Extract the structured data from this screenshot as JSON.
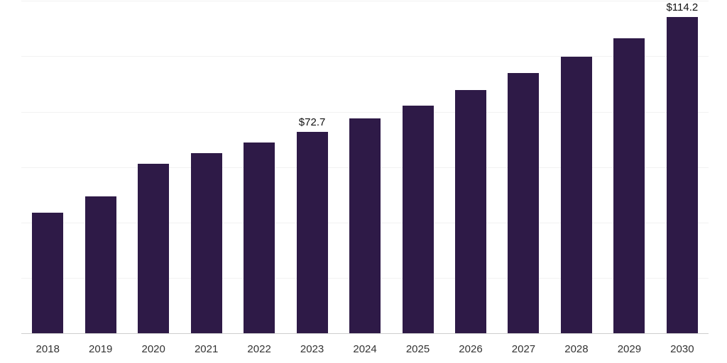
{
  "chart_data": {
    "type": "bar",
    "title": "",
    "xlabel": "",
    "ylabel": "",
    "categories": [
      "2018",
      "2019",
      "2020",
      "2021",
      "2022",
      "2023",
      "2024",
      "2025",
      "2026",
      "2027",
      "2028",
      "2029",
      "2030"
    ],
    "values": [
      43.6,
      49.4,
      61.2,
      65.0,
      68.9,
      72.7,
      77.6,
      82.2,
      87.8,
      94.0,
      99.9,
      106.5,
      114.2
    ],
    "data_labels": [
      "",
      "",
      "",
      "",
      "",
      "$72.7",
      "",
      "",
      "",
      "",
      "",
      "",
      "$114.2"
    ],
    "ylim": [
      0,
      120
    ],
    "gridline_step": 20,
    "grid": true,
    "legend": false,
    "bar_color": "#2e1a47",
    "axis_line_color": "#cfcfcf",
    "gridline_color": "#f2f2f2",
    "label_color": "#111111",
    "tick_color": "#333333"
  }
}
